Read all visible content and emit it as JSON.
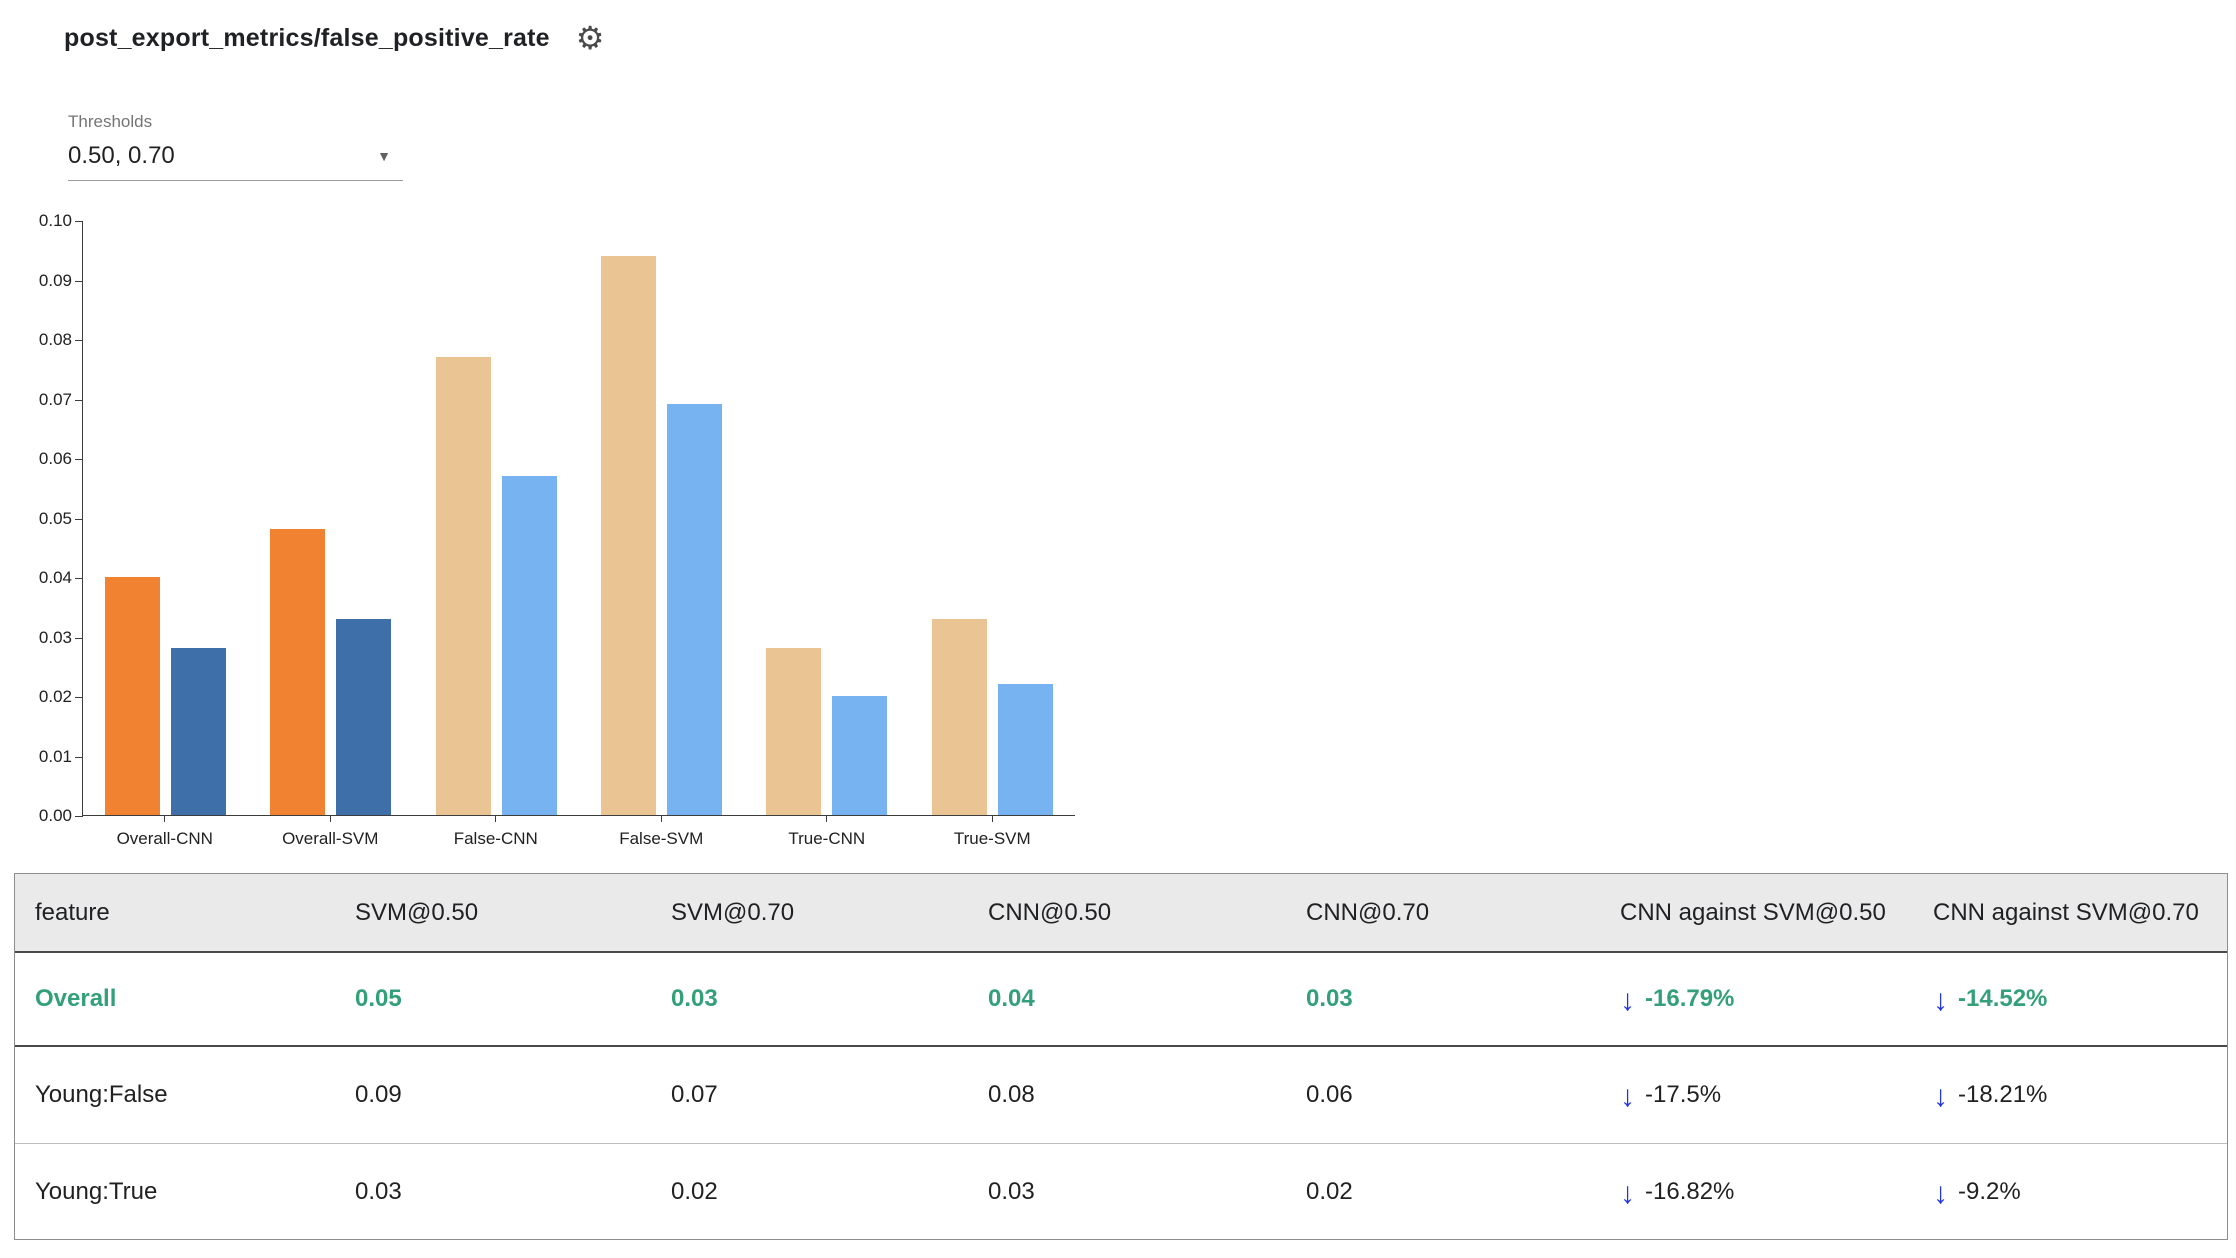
{
  "header": {
    "title": "post_export_metrics/false_positive_rate"
  },
  "icons": {
    "gear": "⚙",
    "dropdown_arrow": "▼",
    "down_arrow": "↓"
  },
  "thresholds": {
    "label": "Thresholds",
    "value": "0.50, 0.70"
  },
  "colors": {
    "selected_text": "#34A07A",
    "arrow_blue": "#2336DE",
    "bar_highlight_t50": "#F08232",
    "bar_highlight_t70": "#3E6FA8",
    "bar_muted_t50": "#EAC593",
    "bar_muted_t70": "#77B3F0",
    "header_bg": "#EAEAEA"
  },
  "chart_data": {
    "type": "bar",
    "title": "post_export_metrics/false_positive_rate",
    "categories": [
      "Overall-CNN",
      "Overall-SVM",
      "False-CNN",
      "False-SVM",
      "True-CNN",
      "True-SVM"
    ],
    "series": [
      {
        "name": "threshold-0.50",
        "values": [
          0.04,
          0.048,
          0.077,
          0.094,
          0.028,
          0.033
        ]
      },
      {
        "name": "threshold-0.70",
        "values": [
          0.028,
          0.033,
          0.057,
          0.069,
          0.02,
          0.022
        ]
      }
    ],
    "ylim": [
      0,
      0.1
    ],
    "yticks": [
      "0.00",
      "0.01",
      "0.02",
      "0.03",
      "0.04",
      "0.05",
      "0.06",
      "0.07",
      "0.08",
      "0.09",
      "0.10"
    ],
    "highlighted_categories": [
      "Overall-CNN",
      "Overall-SVM"
    ],
    "grid": false,
    "legend": "none",
    "xlabel": "",
    "ylabel": ""
  },
  "table": {
    "headers": [
      "feature",
      "SVM@0.50",
      "SVM@0.70",
      "CNN@0.50",
      "CNN@0.70",
      "CNN against SVM@0.50",
      "CNN against SVM@0.70"
    ],
    "rows": [
      {
        "feature": "Overall",
        "svm50": "0.05",
        "svm70": "0.03",
        "cnn50": "0.04",
        "cnn70": "0.03",
        "diff50": "-16.79%",
        "diff70": "-14.52%",
        "selected": true
      },
      {
        "feature": "Young:False",
        "svm50": "0.09",
        "svm70": "0.07",
        "cnn50": "0.08",
        "cnn70": "0.06",
        "diff50": "-17.5%",
        "diff70": "-18.21%",
        "selected": false
      },
      {
        "feature": "Young:True",
        "svm50": "0.03",
        "svm70": "0.02",
        "cnn50": "0.03",
        "cnn70": "0.02",
        "diff50": "-16.82%",
        "diff70": "-9.2%",
        "selected": false
      }
    ]
  }
}
